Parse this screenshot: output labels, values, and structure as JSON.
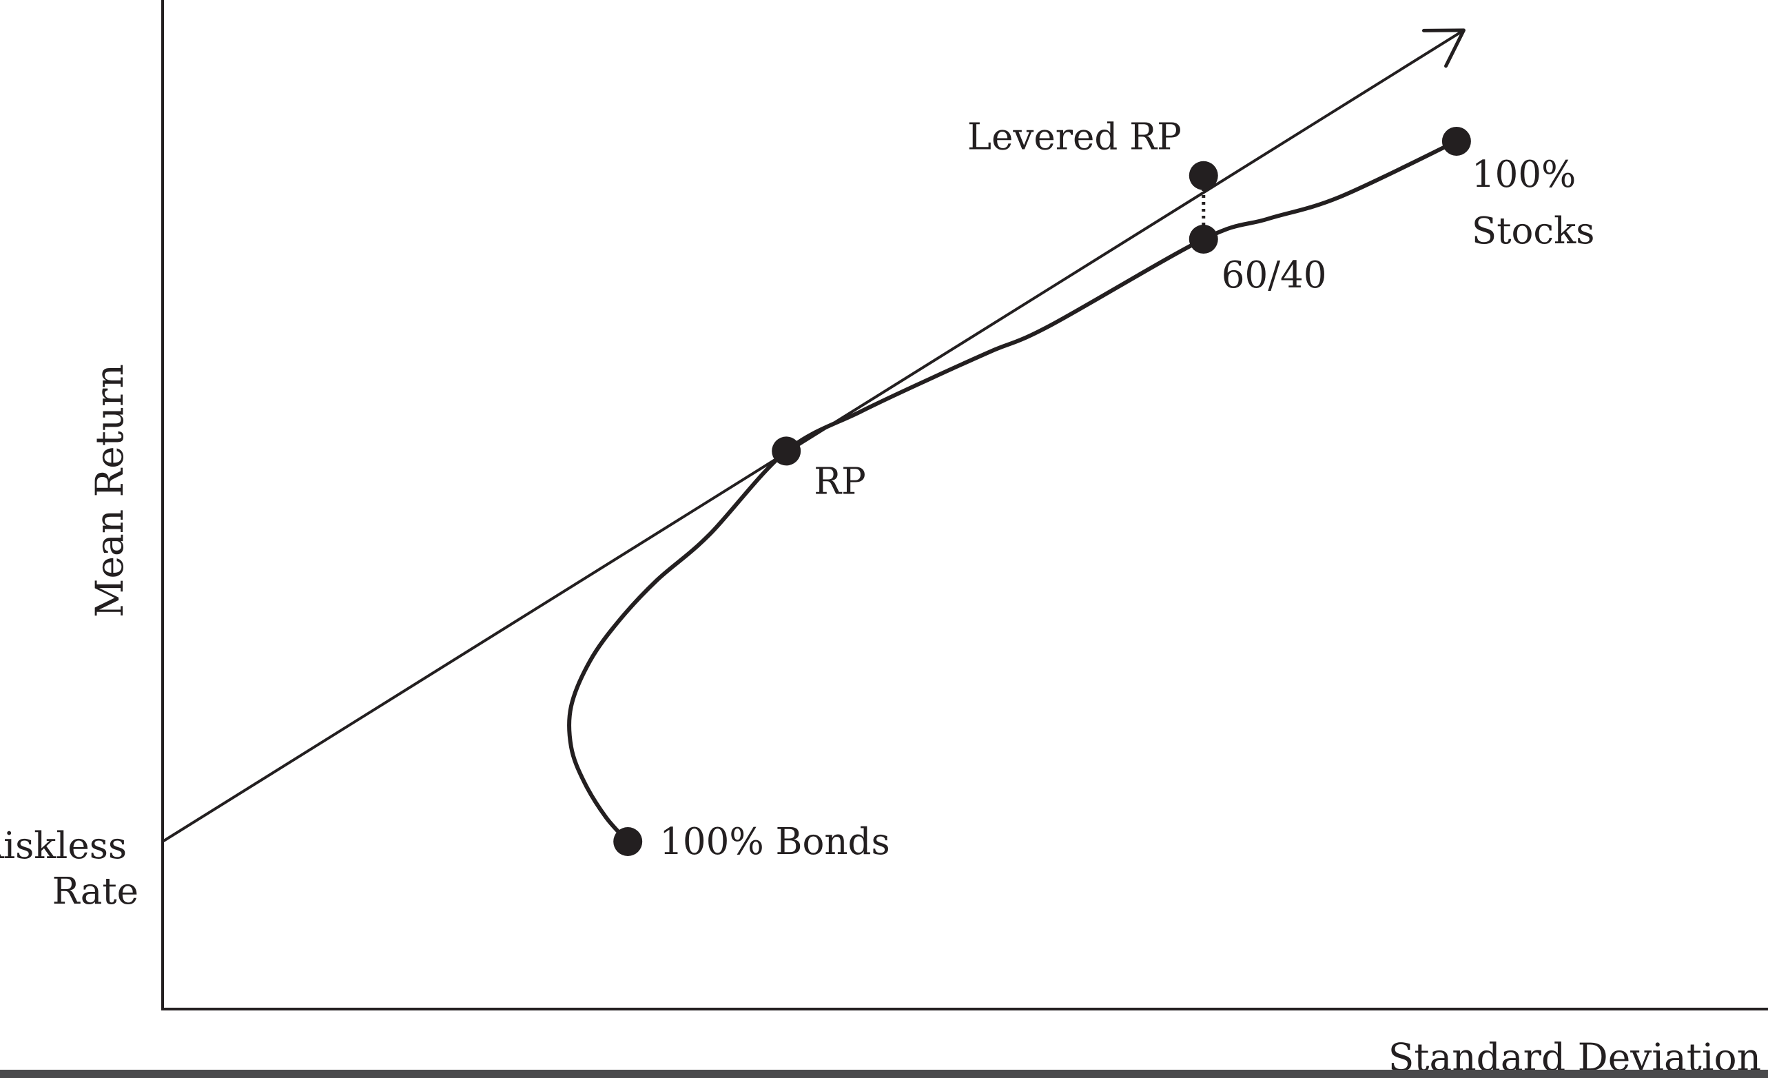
{
  "chart_data": {
    "type": "line",
    "title": "",
    "xlabel": "Standard Deviation",
    "ylabel": "Mean Return",
    "xlim": [
      0,
      100
    ],
    "ylim": [
      0,
      100
    ],
    "grid": false,
    "legend": "none",
    "colors": {
      "ink": "#231f20",
      "background": "#ffffff",
      "bottom_bar": "#4a4a4c"
    },
    "riskless_rate": {
      "label_lines": [
        "Riskless",
        "Rate"
      ],
      "y": 16.6
    },
    "capital_market_line": {
      "from": {
        "x": 0.0,
        "y": 16.6
      },
      "to": {
        "x": 89.5,
        "y": 97.0
      },
      "arrow": true
    },
    "frontier": [
      {
        "x": 32.0,
        "y": 16.6
      },
      {
        "x": 30.5,
        "y": 19.0
      },
      {
        "x": 29.0,
        "y": 22.5
      },
      {
        "x": 28.1,
        "y": 26.0
      },
      {
        "x": 28.1,
        "y": 30.0
      },
      {
        "x": 29.4,
        "y": 34.5
      },
      {
        "x": 31.4,
        "y": 38.5
      },
      {
        "x": 34.0,
        "y": 42.5
      },
      {
        "x": 37.6,
        "y": 47.0
      },
      {
        "x": 42.9,
        "y": 55.3
      },
      {
        "x": 48.0,
        "y": 59.2
      },
      {
        "x": 53.0,
        "y": 62.6
      },
      {
        "x": 57.0,
        "y": 65.2
      },
      {
        "x": 61.0,
        "y": 67.7
      },
      {
        "x": 71.6,
        "y": 76.3
      },
      {
        "x": 76.0,
        "y": 78.3
      },
      {
        "x": 81.0,
        "y": 80.5
      },
      {
        "x": 89.0,
        "y": 86.0
      }
    ],
    "points": [
      {
        "name": "100% Bonds",
        "label_lines": [
          "100% Bonds"
        ],
        "x": 32.0,
        "y": 16.6
      },
      {
        "name": "RP",
        "label_lines": [
          "RP"
        ],
        "x": 42.9,
        "y": 55.3
      },
      {
        "name": "60/40",
        "label_lines": [
          "60/40"
        ],
        "x": 71.6,
        "y": 76.3
      },
      {
        "name": "Levered RP",
        "label_lines": [
          "Levered RP"
        ],
        "x": 71.6,
        "y": 82.6
      },
      {
        "name": "100% Stocks",
        "label_lines": [
          "100%",
          "Stocks"
        ],
        "x": 89.0,
        "y": 86.0
      }
    ],
    "leverage_link": {
      "from": "60/40",
      "to": "Levered RP",
      "style": "dotted"
    }
  }
}
